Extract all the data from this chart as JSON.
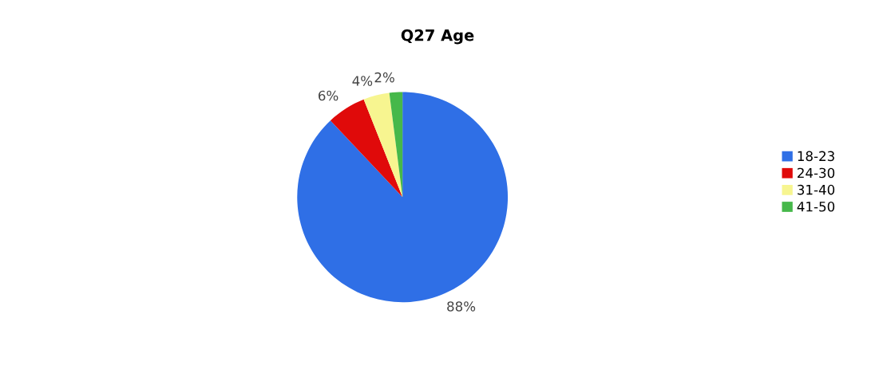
{
  "chart_data": {
    "type": "pie",
    "title": "Q27 Age",
    "categories": [
      "18-23",
      "24-30",
      "31-40",
      "41-50"
    ],
    "values": [
      88,
      6,
      4,
      2
    ],
    "value_labels": [
      "88%",
      "6%",
      "4%",
      "2%"
    ],
    "colors": [
      "#2f6fe6",
      "#e00a0a",
      "#f7f590",
      "#46b84a"
    ],
    "legend": "right"
  }
}
